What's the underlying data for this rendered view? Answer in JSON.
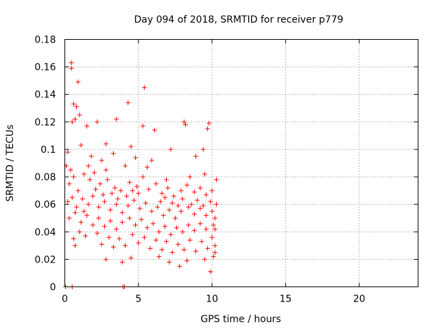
{
  "chart_data": {
    "type": "scatter",
    "title": "Day 094 of 2018, SRMTID for receiver p779",
    "xlabel": "GPS time / hours",
    "ylabel": "SRMTID / TECUs",
    "xlim": [
      0,
      24
    ],
    "ylim": [
      0,
      0.18
    ],
    "xticks": [
      0,
      5,
      10,
      15,
      20
    ],
    "yticks": [
      0,
      0.02,
      0.04,
      0.06,
      0.08,
      0.1,
      0.12,
      0.14,
      0.16,
      0.18
    ],
    "ytick_labels": [
      "0",
      "0.02",
      "0.04",
      "0.06",
      "0.08",
      "0.1",
      "0.12",
      "0.14",
      "0.16",
      "0.18"
    ],
    "grid": true,
    "marker_color": "#ff0000",
    "series": [
      {
        "name": "SRMTID",
        "marker": "plus",
        "points": [
          [
            0.45,
            0.163
          ],
          [
            0.45,
            0.159
          ],
          [
            0.9,
            0.149
          ],
          [
            5.4,
            0.145
          ],
          [
            4.3,
            0.134
          ],
          [
            0.6,
            0.133
          ],
          [
            0.8,
            0.131
          ],
          [
            1.0,
            0.125
          ],
          [
            0.7,
            0.122
          ],
          [
            0.5,
            0.12
          ],
          [
            1.5,
            0.117
          ],
          [
            2.2,
            0.12
          ],
          [
            3.5,
            0.122
          ],
          [
            8.1,
            0.12
          ],
          [
            8.2,
            0.118
          ],
          [
            9.8,
            0.119
          ],
          [
            9.7,
            0.115
          ],
          [
            5.3,
            0.117
          ],
          [
            4.5,
            0.102
          ],
          [
            0.2,
            0.098
          ],
          [
            1.1,
            0.103
          ],
          [
            2.8,
            0.104
          ],
          [
            3.3,
            0.097
          ],
          [
            6.1,
            0.114
          ],
          [
            7.2,
            0.1
          ],
          [
            9.4,
            0.1
          ],
          [
            1.8,
            0.095
          ],
          [
            2.5,
            0.092
          ],
          [
            4.8,
            0.094
          ],
          [
            5.9,
            0.092
          ],
          [
            8.9,
            0.095
          ],
          [
            10.3,
            0.078
          ],
          [
            0.1,
            0.088
          ],
          [
            0.3,
            0.075
          ],
          [
            0.6,
            0.08
          ],
          [
            1.3,
            0.082
          ],
          [
            1.7,
            0.078
          ],
          [
            2.0,
            0.083
          ],
          [
            2.4,
            0.075
          ],
          [
            2.9,
            0.078
          ],
          [
            3.4,
            0.072
          ],
          [
            3.8,
            0.07
          ],
          [
            4.4,
            0.076
          ],
          [
            4.9,
            0.073
          ],
          [
            5.3,
            0.08
          ],
          [
            5.7,
            0.071
          ],
          [
            6.2,
            0.075
          ],
          [
            6.6,
            0.068
          ],
          [
            7.0,
            0.072
          ],
          [
            7.4,
            0.066
          ],
          [
            7.9,
            0.07
          ],
          [
            8.3,
            0.074
          ],
          [
            8.8,
            0.069
          ],
          [
            9.2,
            0.072
          ],
          [
            9.6,
            0.067
          ],
          [
            10.0,
            0.07
          ],
          [
            0.2,
            0.062
          ],
          [
            0.5,
            0.065
          ],
          [
            0.8,
            0.058
          ],
          [
            1.2,
            0.064
          ],
          [
            1.6,
            0.06
          ],
          [
            1.9,
            0.066
          ],
          [
            2.3,
            0.058
          ],
          [
            2.7,
            0.062
          ],
          [
            3.1,
            0.056
          ],
          [
            3.5,
            0.06
          ],
          [
            3.9,
            0.054
          ],
          [
            4.3,
            0.059
          ],
          [
            4.7,
            0.063
          ],
          [
            5.1,
            0.057
          ],
          [
            5.5,
            0.061
          ],
          [
            5.9,
            0.055
          ],
          [
            6.3,
            0.058
          ],
          [
            6.7,
            0.052
          ],
          [
            7.1,
            0.056
          ],
          [
            7.5,
            0.05
          ],
          [
            7.9,
            0.055
          ],
          [
            8.4,
            0.058
          ],
          [
            8.8,
            0.053
          ],
          [
            9.2,
            0.057
          ],
          [
            9.6,
            0.052
          ],
          [
            10.0,
            0.055
          ],
          [
            10.3,
            0.06
          ],
          [
            0.3,
            0.05
          ],
          [
            0.7,
            0.054
          ],
          [
            1.1,
            0.047
          ],
          [
            1.5,
            0.052
          ],
          [
            1.9,
            0.045
          ],
          [
            2.3,
            0.05
          ],
          [
            2.7,
            0.044
          ],
          [
            3.1,
            0.048
          ],
          [
            3.5,
            0.042
          ],
          [
            3.9,
            0.047
          ],
          [
            4.4,
            0.05
          ],
          [
            4.8,
            0.045
          ],
          [
            5.2,
            0.049
          ],
          [
            5.6,
            0.043
          ],
          [
            6.0,
            0.046
          ],
          [
            6.4,
            0.04
          ],
          [
            6.8,
            0.044
          ],
          [
            7.2,
            0.038
          ],
          [
            7.6,
            0.043
          ],
          [
            8.0,
            0.04
          ],
          [
            8.4,
            0.045
          ],
          [
            8.8,
            0.041
          ],
          [
            9.2,
            0.046
          ],
          [
            9.6,
            0.042
          ],
          [
            10.1,
            0.045
          ],
          [
            1.0,
            0.04
          ],
          [
            1.4,
            0.037
          ],
          [
            2.2,
            0.039
          ],
          [
            3.0,
            0.036
          ],
          [
            3.7,
            0.035
          ],
          [
            4.6,
            0.038
          ],
          [
            5.4,
            0.036
          ],
          [
            6.2,
            0.034
          ],
          [
            6.9,
            0.033
          ],
          [
            7.7,
            0.031
          ],
          [
            8.5,
            0.034
          ],
          [
            9.3,
            0.033
          ],
          [
            10.0,
            0.036
          ],
          [
            0.6,
            0.035
          ],
          [
            0.7,
            0.03
          ],
          [
            2.5,
            0.031
          ],
          [
            3.3,
            0.029
          ],
          [
            4.1,
            0.03
          ],
          [
            5.0,
            0.032
          ],
          [
            5.8,
            0.028
          ],
          [
            6.6,
            0.027
          ],
          [
            7.3,
            0.025
          ],
          [
            8.1,
            0.027
          ],
          [
            8.9,
            0.026
          ],
          [
            9.7,
            0.028
          ],
          [
            10.2,
            0.03
          ],
          [
            2.8,
            0.02
          ],
          [
            3.9,
            0.018
          ],
          [
            4.5,
            0.021
          ],
          [
            6.4,
            0.022
          ],
          [
            7.1,
            0.018
          ],
          [
            7.8,
            0.015
          ],
          [
            8.3,
            0.019
          ],
          [
            9.5,
            0.02
          ],
          [
            10.1,
            0.022
          ],
          [
            10.2,
            0.025
          ],
          [
            9.9,
            0.011
          ],
          [
            1.3,
            0.055
          ],
          [
            2.6,
            0.067
          ],
          [
            3.6,
            0.064
          ],
          [
            4.2,
            0.066
          ],
          [
            5.0,
            0.068
          ],
          [
            6.5,
            0.062
          ],
          [
            7.3,
            0.061
          ],
          [
            8.0,
            0.064
          ],
          [
            9.0,
            0.063
          ],
          [
            9.9,
            0.062
          ],
          [
            0.9,
            0.07
          ],
          [
            2.1,
            0.071
          ],
          [
            3.2,
            0.068
          ],
          [
            4.6,
            0.07
          ],
          [
            6.8,
            0.065
          ],
          [
            7.7,
            0.059
          ],
          [
            8.6,
            0.06
          ],
          [
            9.4,
            0.059
          ],
          [
            10.2,
            0.05
          ],
          [
            10.2,
            0.042
          ],
          [
            0.4,
            0.085
          ],
          [
            1.6,
            0.088
          ],
          [
            2.8,
            0.085
          ],
          [
            4.1,
            0.088
          ],
          [
            5.6,
            0.087
          ],
          [
            6.9,
            0.078
          ],
          [
            8.5,
            0.08
          ],
          [
            9.5,
            0.082
          ],
          [
            0.05,
            0.0
          ],
          [
            0.5,
            0.0
          ],
          [
            3.95,
            0.0
          ],
          [
            4.05,
            0.0
          ]
        ]
      }
    ]
  }
}
